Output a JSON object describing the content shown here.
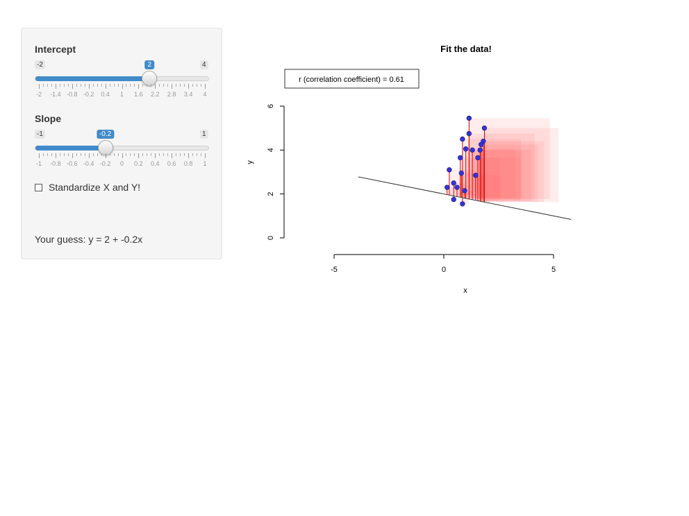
{
  "sidebar": {
    "intercept": {
      "label": "Intercept",
      "min_label": "-2",
      "max_label": "4",
      "value_label": "2",
      "value": 2,
      "min": -2,
      "max": 4,
      "tick_labels": [
        "-2",
        "-1.4",
        "-0.8",
        "-0.2",
        "0.4",
        "1",
        "1.6",
        "2.2",
        "2.8",
        "3.4",
        "4"
      ]
    },
    "slope": {
      "label": "Slope",
      "min_label": "-1",
      "max_label": "1",
      "value_label": "-0.2",
      "value": -0.2,
      "min": -1,
      "max": 1,
      "tick_labels": [
        "-1",
        "-0.8",
        "-0.6",
        "-0.4",
        "-0.2",
        "0",
        "0.2",
        "0.4",
        "0.6",
        "0.8",
        "1"
      ]
    },
    "standardize": {
      "label": "Standardize X and Y!",
      "checked": false
    },
    "guess_text": "Your guess: y = 2 + -0.2x"
  },
  "plot": {
    "title": "Fit the data!",
    "legend_text": "r (correlation coefficient) = 0.61",
    "xlabel": "x",
    "ylabel": "y",
    "x_tick_labels": [
      "-5",
      "0",
      "5"
    ],
    "y_tick_labels": [
      "0",
      "2",
      "4",
      "6"
    ]
  },
  "chart_data": {
    "type": "scatter",
    "title": "Fit the data!",
    "xlabel": "x",
    "ylabel": "y",
    "xlim": [
      -5,
      5
    ],
    "ylim": [
      0,
      6
    ],
    "x_ticks": [
      -5,
      0,
      5
    ],
    "y_ticks": [
      0,
      2,
      4,
      6
    ],
    "legend": "r (correlation coefficient) = 0.61",
    "fitted_line": {
      "intercept": 2,
      "slope": -0.2,
      "x_range": [
        -3.9,
        5.8
      ]
    },
    "points": [
      {
        "x": 0.15,
        "y": 2.3
      },
      {
        "x": 0.25,
        "y": 3.1
      },
      {
        "x": 0.45,
        "y": 1.75
      },
      {
        "x": 0.45,
        "y": 2.5
      },
      {
        "x": 0.6,
        "y": 2.3
      },
      {
        "x": 0.75,
        "y": 3.65
      },
      {
        "x": 0.8,
        "y": 2.95
      },
      {
        "x": 0.85,
        "y": 4.5
      },
      {
        "x": 0.85,
        "y": 1.55
      },
      {
        "x": 0.95,
        "y": 2.15
      },
      {
        "x": 1.0,
        "y": 4.05
      },
      {
        "x": 1.15,
        "y": 5.45
      },
      {
        "x": 1.15,
        "y": 4.75
      },
      {
        "x": 1.3,
        "y": 4.0
      },
      {
        "x": 1.45,
        "y": 2.85
      },
      {
        "x": 1.55,
        "y": 3.65
      },
      {
        "x": 1.65,
        "y": 4.0
      },
      {
        "x": 1.7,
        "y": 4.25
      },
      {
        "x": 1.8,
        "y": 4.4
      },
      {
        "x": 1.85,
        "y": 5.0
      }
    ],
    "colors": {
      "points": "#3333dd",
      "residuals": "#dd0000",
      "squares": "#ff6666",
      "line": "#333333"
    }
  }
}
